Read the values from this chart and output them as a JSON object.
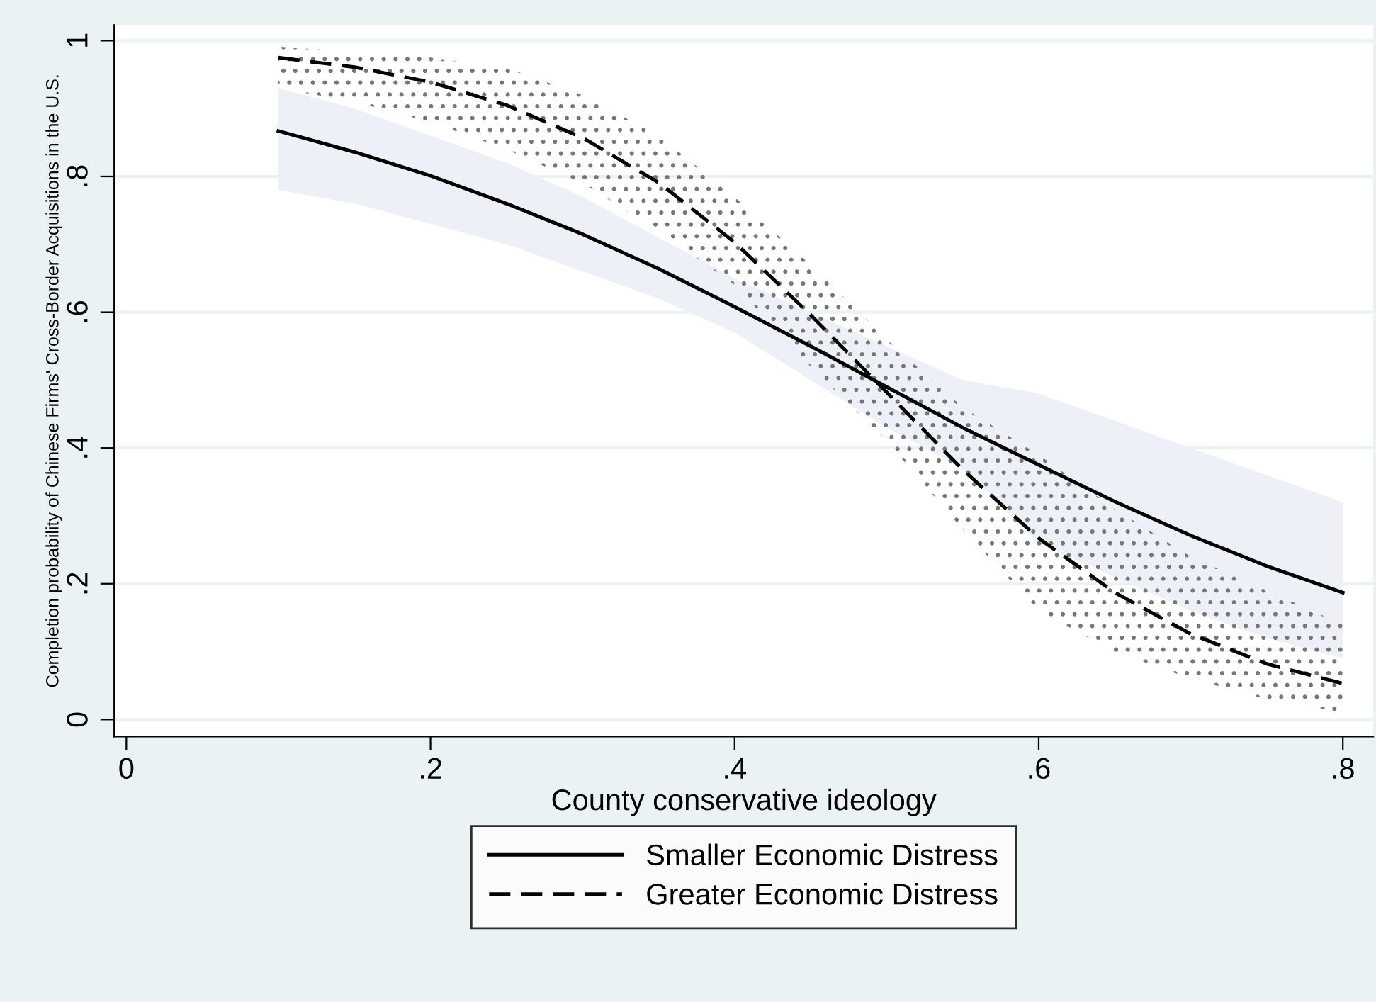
{
  "chart_data": {
    "type": "line",
    "xlabel": "County conservative ideology",
    "ylabel": "Completion probability of Chinese Firms' Cross-Border Acquisitions in the U.S.",
    "x": [
      0.1,
      0.15,
      0.2,
      0.25,
      0.3,
      0.35,
      0.4,
      0.45,
      0.5,
      0.55,
      0.6,
      0.65,
      0.7,
      0.75,
      0.8
    ],
    "series": [
      {
        "name": "Smaller Economic Distress",
        "color": "#000000",
        "line_style": "solid",
        "values": [
          0.867,
          0.836,
          0.801,
          0.76,
          0.715,
          0.664,
          0.608,
          0.55,
          0.49,
          0.43,
          0.375,
          0.321,
          0.271,
          0.226,
          0.187
        ],
        "lower": [
          0.78,
          0.76,
          0.73,
          0.7,
          0.66,
          0.62,
          0.57,
          0.5,
          0.43,
          0.37,
          0.26,
          0.21,
          0.16,
          0.12,
          0.09
        ],
        "upper": [
          0.93,
          0.9,
          0.86,
          0.82,
          0.77,
          0.71,
          0.65,
          0.6,
          0.55,
          0.5,
          0.48,
          0.44,
          0.4,
          0.36,
          0.32
        ]
      },
      {
        "name": "Greater Economic Distress",
        "color": "#000000",
        "line_style": "dashed",
        "values": [
          0.975,
          0.961,
          0.939,
          0.905,
          0.857,
          0.791,
          0.703,
          0.596,
          0.482,
          0.368,
          0.267,
          0.187,
          0.126,
          0.082,
          0.053
        ],
        "lower": [
          0.93,
          0.91,
          0.88,
          0.84,
          0.79,
          0.72,
          0.64,
          0.52,
          0.41,
          0.28,
          0.16,
          0.1,
          0.06,
          0.03,
          0.01
        ],
        "upper": [
          0.99,
          0.985,
          0.975,
          0.96,
          0.92,
          0.86,
          0.77,
          0.67,
          0.56,
          0.46,
          0.39,
          0.31,
          0.24,
          0.19,
          0.14
        ]
      }
    ],
    "xlim": [
      -0.008,
      0.82
    ],
    "ylim": [
      -0.025,
      1.023
    ],
    "xticks": [
      0,
      {
        "value": 0.2,
        "label": ".2"
      },
      {
        "value": 0.4,
        "label": ".4"
      },
      {
        "value": 0.6,
        "label": ".6"
      },
      {
        "value": 0.8,
        "label": ".8"
      }
    ],
    "yticks": [
      0,
      {
        "value": 0.2,
        "label": ".2"
      },
      {
        "value": 0.4,
        "label": ".4"
      },
      {
        "value": 0.6,
        "label": ".6"
      },
      {
        "value": 0.8,
        "label": ".8"
      },
      1
    ],
    "grid": "y",
    "legend": "bottom",
    "marker": "none"
  }
}
